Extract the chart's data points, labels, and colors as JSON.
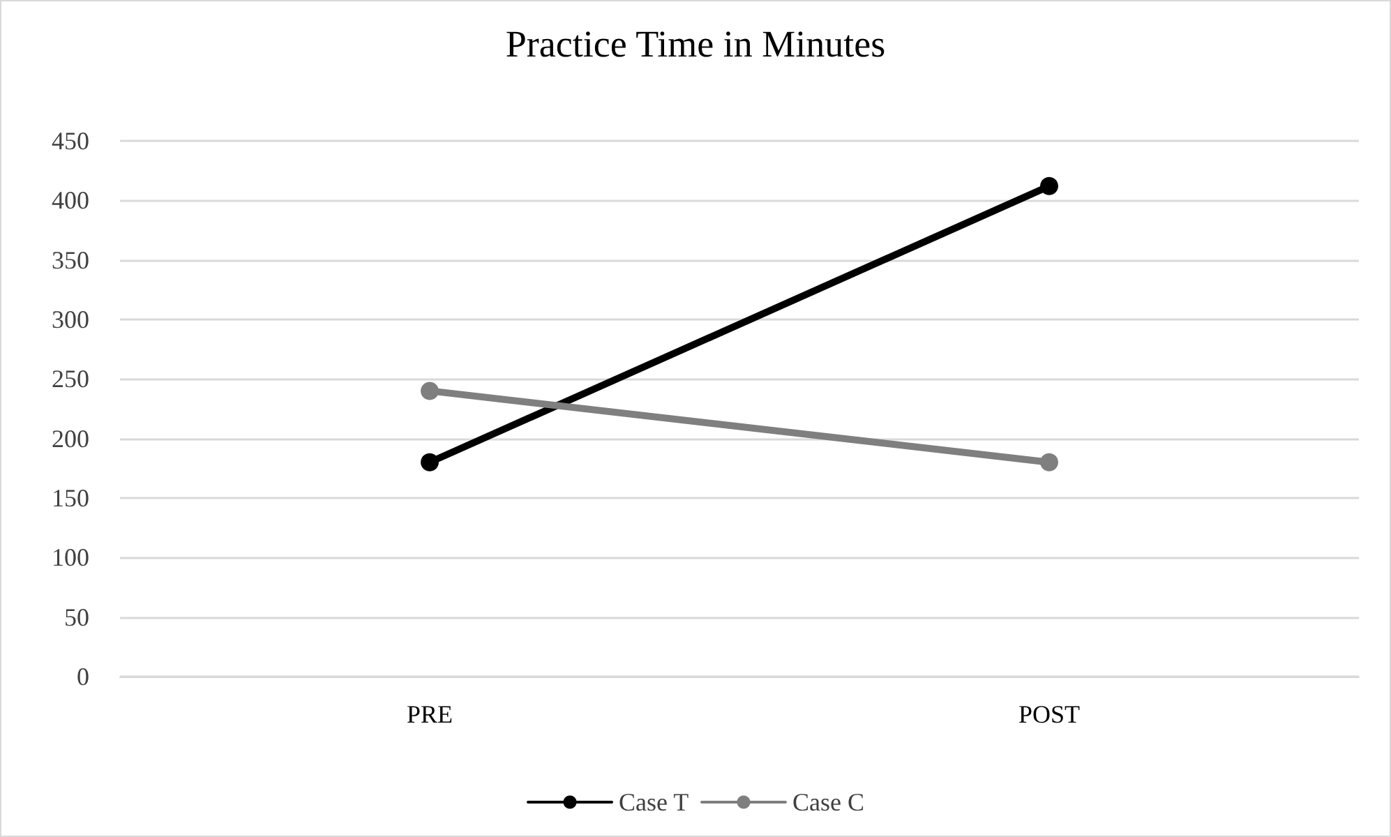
{
  "chart_data": {
    "type": "line",
    "title": "Practice Time in Minutes",
    "categories": [
      "PRE",
      "POST"
    ],
    "series": [
      {
        "name": "Case T",
        "color": "#000000",
        "values": [
          180,
          412
        ]
      },
      {
        "name": "Case C",
        "color": "#7f7f7f",
        "values": [
          240,
          180
        ]
      }
    ],
    "ylim": [
      0,
      450
    ],
    "yticks": [
      0,
      50,
      100,
      150,
      200,
      250,
      300,
      350,
      400,
      450
    ],
    "grid": "y",
    "legend": "bottom",
    "marker": "circle",
    "line_style": "solid"
  }
}
